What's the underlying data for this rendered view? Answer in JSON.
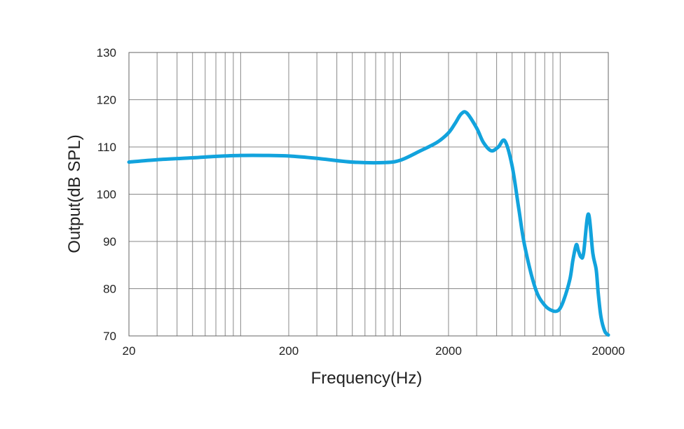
{
  "chart_data": {
    "type": "line",
    "title": "",
    "xlabel": "Frequency(Hz)",
    "ylabel": "Output(dB SPL)",
    "x_scale": "log",
    "xlim": [
      20,
      20000
    ],
    "ylim": [
      70,
      130
    ],
    "x_ticks": [
      20,
      200,
      2000,
      20000
    ],
    "x_tick_labels": [
      "20",
      "200",
      "2000",
      "20000"
    ],
    "y_ticks": [
      70,
      80,
      90,
      100,
      110,
      120,
      130
    ],
    "y_tick_labels": [
      "70",
      "80",
      "90",
      "100",
      "110",
      "120",
      "130"
    ],
    "grid": true,
    "legend": "none",
    "series_color": "#12a3dd",
    "series": [
      {
        "x": [
          20,
          30,
          50,
          70,
          100,
          150,
          200,
          300,
          500,
          800,
          1000,
          1300,
          1700,
          2000,
          2200,
          2400,
          2600,
          3000,
          3300,
          3700,
          4100,
          4500,
          5000,
          5500,
          6000,
          7000,
          8000,
          9000,
          9800,
          10500,
          11500,
          12000,
          12600,
          13000,
          13500,
          14000,
          15000,
          16000,
          16800,
          17300,
          18000,
          19000,
          20000
        ],
        "y": [
          106.8,
          107.3,
          107.7,
          108.0,
          108.2,
          108.2,
          108.1,
          107.6,
          106.8,
          106.7,
          107.2,
          109.0,
          111.0,
          113.0,
          115.0,
          117.0,
          117.2,
          114.0,
          111.0,
          109.2,
          110.0,
          111.3,
          106.0,
          97.0,
          89.0,
          80.0,
          76.5,
          75.3,
          75.5,
          77.5,
          82.0,
          86.0,
          89.3,
          88.0,
          86.7,
          87.5,
          95.8,
          87.5,
          84.0,
          79.0,
          74.0,
          71.0,
          70.2
        ]
      }
    ]
  }
}
